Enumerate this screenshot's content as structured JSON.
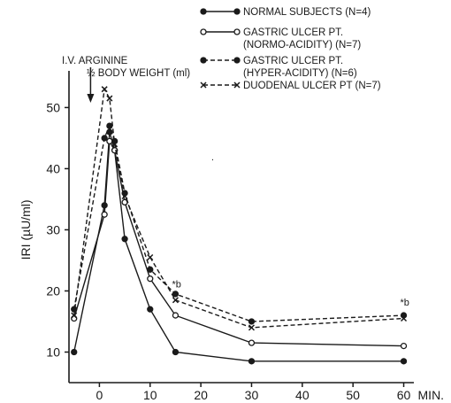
{
  "chart_data": {
    "type": "line",
    "title": "",
    "xlabel": "MIN.",
    "ylabel": "IRI (µU/ml)",
    "xlim": [
      -6,
      62
    ],
    "ylim": [
      5,
      56
    ],
    "x_ticks": [
      0,
      10,
      20,
      30,
      40,
      50,
      60
    ],
    "x_tick_labels": [
      "0",
      "10",
      "20",
      "30",
      "40",
      "50",
      "60"
    ],
    "y_ticks": [
      10,
      20,
      30,
      40,
      50
    ],
    "y_tick_labels": [
      "10",
      "20",
      "30",
      "40",
      "50"
    ],
    "grid": false,
    "legend_position": "top-right",
    "x": [
      -5,
      1,
      2,
      3,
      5,
      10,
      15,
      30,
      60
    ],
    "series": [
      {
        "name": "NORMAL SUBJECTS (N=4)",
        "line_style": "solid",
        "marker": "filled-circle",
        "values": [
          10,
          34,
          46,
          43,
          28.5,
          17,
          10,
          8.5,
          8.5
        ]
      },
      {
        "name": "GASTRIC ULCER PT. (NORMO-ACIDITY) (N=7)",
        "line_style": "solid",
        "marker": "open-circle",
        "values": [
          15.5,
          32.5,
          44.5,
          43,
          34.5,
          22,
          16,
          11.5,
          11
        ]
      },
      {
        "name": "GASTRIC ULCER PT. (HYPER-ACIDITY) (N=6)",
        "line_style": "dashed",
        "marker": "filled-circle",
        "values": [
          17,
          45,
          47,
          44.5,
          36,
          23.5,
          19.5,
          15,
          16
        ]
      },
      {
        "name": "DUODENAL ULCER PT (N=7)",
        "line_style": "dashed",
        "marker": "cross",
        "values": [
          16,
          53,
          51.5,
          44,
          35.5,
          25.5,
          18.5,
          14,
          15.5
        ]
      }
    ],
    "annotations": [
      {
        "text": "I.V. ARGININE",
        "target_x": 0
      },
      {
        "text": "½ BODY WEIGHT (ml)",
        "target_x": 0
      },
      {
        "text": "*b",
        "x": 15,
        "y": 20
      },
      {
        "text": "*b",
        "x": 60,
        "y": 17
      },
      {
        "text": "·",
        "x": 22,
        "y": 41
      }
    ],
    "legend_labels": {
      "s0": [
        "NORMAL SUBJECTS (N=4)"
      ],
      "s1": [
        "GASTRIC ULCER PT.",
        "(NORMO-ACIDITY) (N=7)"
      ],
      "s2": [
        "GASTRIC ULCER PT.",
        "(HYPER-ACIDITY) (N=6)"
      ],
      "s3": [
        "DUODENAL ULCER PT (N=7)"
      ]
    }
  }
}
